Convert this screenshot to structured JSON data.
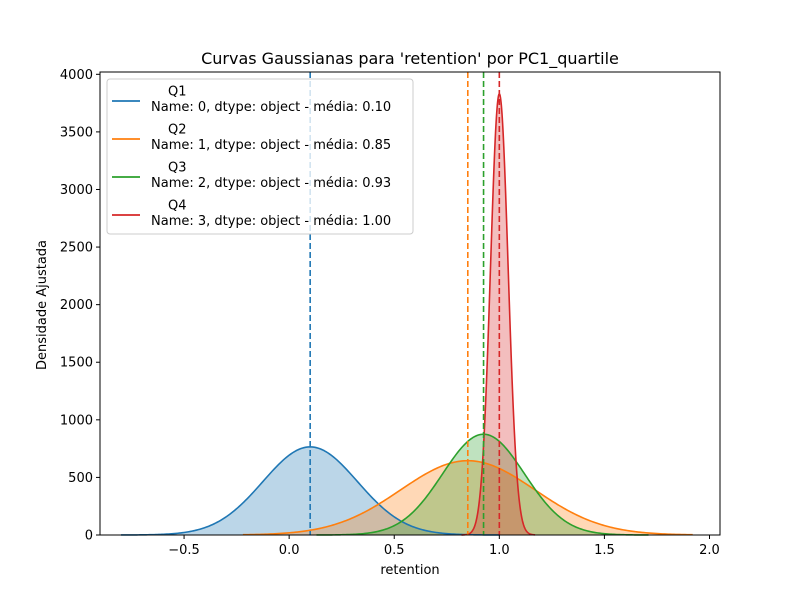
{
  "chart_data": {
    "type": "line",
    "title": "Curvas Gaussianas para 'retention' por PC1_quartile",
    "xlabel": "retention",
    "ylabel": "Densidade Ajustada",
    "xlim": [
      -0.9,
      2.05
    ],
    "ylim": [
      0,
      4020
    ],
    "xticks": [
      -0.5,
      0.0,
      0.5,
      1.0,
      1.5,
      2.0
    ],
    "xtick_labels": [
      "−0.5",
      "0.0",
      "0.5",
      "1.0",
      "1.5",
      "2.0"
    ],
    "yticks": [
      0,
      500,
      1000,
      1500,
      2000,
      2500,
      3000,
      3500,
      4000
    ],
    "ytick_labels": [
      "0",
      "500",
      "1000",
      "1500",
      "2000",
      "2500",
      "3000",
      "3500",
      "4000"
    ],
    "legend_position": "top-left",
    "series": [
      {
        "name": "Q1",
        "label_detail": "Name: 0, dtype: object - média: 0.10",
        "mean": 0.1,
        "sd": 0.225,
        "peak": 765,
        "x_range": [
          -0.8,
          1.0
        ],
        "color": "#1f77b4"
      },
      {
        "name": "Q2",
        "label_detail": "Name: 1, dtype: object - média: 0.85",
        "mean": 0.85,
        "sd": 0.32,
        "peak": 645,
        "x_range": [
          -0.22,
          1.92
        ],
        "color": "#ff7f0e"
      },
      {
        "name": "Q3",
        "label_detail": "Name: 2, dtype: object - média: 0.93",
        "mean": 0.925,
        "sd": 0.195,
        "peak": 875,
        "x_range": [
          0.13,
          1.71
        ],
        "color": "#2ca02c"
      },
      {
        "name": "Q4",
        "label_detail": "Name: 3, dtype: object - média: 1.00",
        "mean": 1.0,
        "sd": 0.042,
        "peak": 3830,
        "x_range": [
          0.82,
          1.17
        ],
        "color": "#d62728"
      }
    ]
  }
}
